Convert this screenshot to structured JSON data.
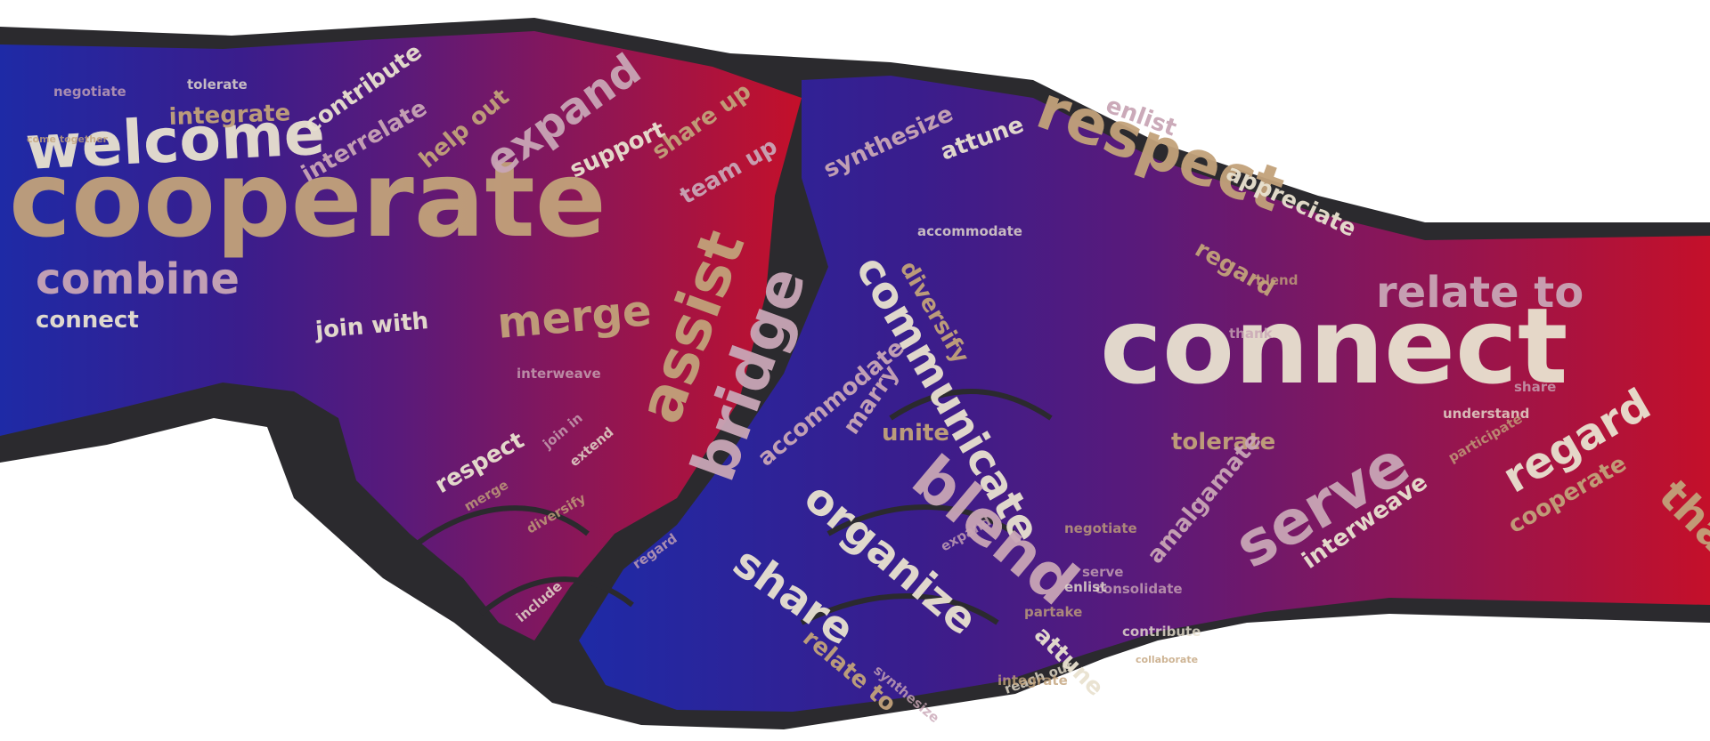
{
  "artwork": {
    "subject": "handshake-word-cloud",
    "gradient_colors": [
      "#1e2aa6",
      "#3a1d8c",
      "#5a1a7a",
      "#8a1658",
      "#c4102a"
    ],
    "outline_color": "#2b2a2e",
    "word_color_light": "#e9e2d0",
    "word_color_tan": "#c2a27a",
    "word_color_mauve": "#c9a6b6"
  },
  "words": [
    {
      "text": "welcome",
      "size": "xl"
    },
    {
      "text": "cooperate",
      "size": "xxl"
    },
    {
      "text": "combine",
      "size": "l"
    },
    {
      "text": "connect",
      "size": "m"
    },
    {
      "text": "integrate",
      "size": "m"
    },
    {
      "text": "negotiate",
      "size": "s"
    },
    {
      "text": "tolerate",
      "size": "s"
    },
    {
      "text": "come together",
      "size": "xs"
    },
    {
      "text": "interrelate",
      "size": "m"
    },
    {
      "text": "contribute",
      "size": "m"
    },
    {
      "text": "help out",
      "size": "m"
    },
    {
      "text": "expand",
      "size": "l"
    },
    {
      "text": "support",
      "size": "m"
    },
    {
      "text": "share up",
      "size": "m"
    },
    {
      "text": "team up",
      "size": "m"
    },
    {
      "text": "join with",
      "size": "m"
    },
    {
      "text": "merge",
      "size": "l"
    },
    {
      "text": "interweave",
      "size": "s"
    },
    {
      "text": "accommodate",
      "size": "s"
    },
    {
      "text": "assist",
      "size": "xl"
    },
    {
      "text": "bridge",
      "size": "xl"
    },
    {
      "text": "communicate",
      "size": "l"
    },
    {
      "text": "diversify",
      "size": "m"
    },
    {
      "text": "synthesize",
      "size": "m"
    },
    {
      "text": "attune",
      "size": "m"
    },
    {
      "text": "respect",
      "size": "xl"
    },
    {
      "text": "enlist",
      "size": "m"
    },
    {
      "text": "appreciate",
      "size": "m"
    },
    {
      "text": "regard",
      "size": "m"
    },
    {
      "text": "relate to",
      "size": "l"
    },
    {
      "text": "connect",
      "size": "xxl"
    },
    {
      "text": "tolerate",
      "size": "m"
    },
    {
      "text": "serve",
      "size": "xl"
    },
    {
      "text": "regard",
      "size": "l"
    },
    {
      "text": "thank",
      "size": "l"
    },
    {
      "text": "amalgamate",
      "size": "m"
    },
    {
      "text": "interweave",
      "size": "m"
    },
    {
      "text": "cooperate",
      "size": "m"
    },
    {
      "text": "blend",
      "size": "xl"
    },
    {
      "text": "organize",
      "size": "l"
    },
    {
      "text": "unite",
      "size": "m"
    },
    {
      "text": "accommodate",
      "size": "m"
    },
    {
      "text": "share",
      "size": "l"
    },
    {
      "text": "relate to",
      "size": "m"
    },
    {
      "text": "marry",
      "size": "m"
    },
    {
      "text": "attune",
      "size": "m"
    },
    {
      "text": "negotiate",
      "size": "s"
    },
    {
      "text": "serve",
      "size": "s"
    },
    {
      "text": "respect",
      "size": "m"
    },
    {
      "text": "merge",
      "size": "s"
    },
    {
      "text": "join in",
      "size": "s"
    },
    {
      "text": "extend",
      "size": "s"
    },
    {
      "text": "diversify",
      "size": "s"
    },
    {
      "text": "regard",
      "size": "s"
    },
    {
      "text": "include",
      "size": "s"
    },
    {
      "text": "partake",
      "size": "s"
    },
    {
      "text": "consolidate",
      "size": "s"
    },
    {
      "text": "contribute",
      "size": "s"
    },
    {
      "text": "collaborate",
      "size": "xs"
    },
    {
      "text": "synthesize",
      "size": "s"
    },
    {
      "text": "reach out",
      "size": "s"
    },
    {
      "text": "integrate",
      "size": "s"
    },
    {
      "text": "expand",
      "size": "s"
    },
    {
      "text": "enlist",
      "size": "s"
    },
    {
      "text": "blend",
      "size": "s"
    },
    {
      "text": "thank",
      "size": "s"
    },
    {
      "text": "understand",
      "size": "s"
    },
    {
      "text": "participate",
      "size": "s"
    },
    {
      "text": "share",
      "size": "s"
    }
  ]
}
